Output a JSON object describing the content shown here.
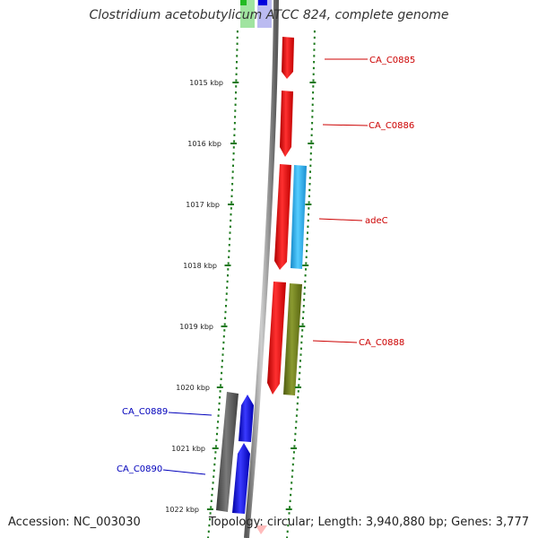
{
  "title": "Clostridium acetobutylicum ATCC 824, complete genome",
  "footer": {
    "accession": "Accession: NC_003030",
    "summary": "Topology: circular; Length: 3,940,880 bp; Genes: 3,777"
  },
  "colors": {
    "backbone": "#8a8a8a",
    "ticks": "#1e7a1e",
    "forward_label": "#cc0000",
    "reverse_label": "#0000bb",
    "red_gene": "#ee0000",
    "cyan_gene": "#22aaee",
    "olive_gene": "#6b7a1c",
    "blue_gene": "#0000ee",
    "gray_gene": "#555555"
  },
  "scale": {
    "unit": "kbp",
    "labels": [
      "1015 kbp",
      "1016 kbp",
      "1017 kbp",
      "1018 kbp",
      "1019 kbp",
      "1020 kbp",
      "1021 kbp",
      "1022 kbp"
    ]
  },
  "genes": {
    "forward": [
      {
        "label": "CA_C0885",
        "color": "red_gene",
        "lane": "outer"
      },
      {
        "label": "CA_C0886",
        "color": "red_gene",
        "lane": "outer"
      },
      {
        "label": "adeC",
        "color": "red_gene",
        "lane": "outer",
        "second_lane_color": "cyan_gene"
      },
      {
        "label": "CA_C0888",
        "color": "red_gene",
        "lane": "outer",
        "second_lane_color": "olive_gene"
      }
    ],
    "reverse": [
      {
        "label": "CA_C0889",
        "color": "blue_gene",
        "lane": "inner",
        "second_lane_color": "gray_gene"
      },
      {
        "label": "CA_C0890",
        "color": "blue_gene",
        "lane": "inner",
        "second_lane_color": "gray_gene"
      }
    ]
  }
}
